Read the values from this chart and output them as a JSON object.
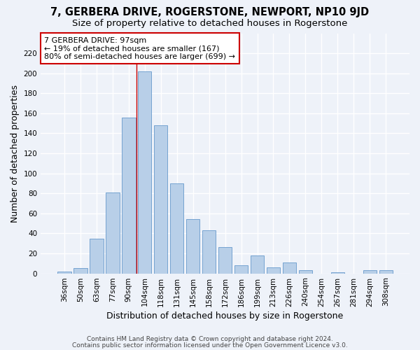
{
  "title": "7, GERBERA DRIVE, ROGERSTONE, NEWPORT, NP10 9JD",
  "subtitle": "Size of property relative to detached houses in Rogerstone",
  "xlabel": "Distribution of detached houses by size in Rogerstone",
  "ylabel": "Number of detached properties",
  "categories": [
    "36sqm",
    "50sqm",
    "63sqm",
    "77sqm",
    "90sqm",
    "104sqm",
    "118sqm",
    "131sqm",
    "145sqm",
    "158sqm",
    "172sqm",
    "186sqm",
    "199sqm",
    "213sqm",
    "226sqm",
    "240sqm",
    "254sqm",
    "267sqm",
    "281sqm",
    "294sqm",
    "308sqm"
  ],
  "values": [
    2,
    5,
    35,
    81,
    156,
    202,
    148,
    90,
    54,
    43,
    26,
    8,
    18,
    6,
    11,
    3,
    0,
    1,
    0,
    3,
    3
  ],
  "bar_color": "#b8cfe8",
  "bar_edge_color": "#6699cc",
  "annotation_text": "7 GERBERA DRIVE: 97sqm\n← 19% of detached houses are smaller (167)\n80% of semi-detached houses are larger (699) →",
  "annotation_box_color": "#ffffff",
  "annotation_box_edge": "#cc0000",
  "vline_x": 4.5,
  "vline_color": "#cc0000",
  "ylim": [
    0,
    240
  ],
  "yticks": [
    0,
    20,
    40,
    60,
    80,
    100,
    120,
    140,
    160,
    180,
    200,
    220
  ],
  "footer1": "Contains HM Land Registry data © Crown copyright and database right 2024.",
  "footer2": "Contains public sector information licensed under the Open Government Licence v3.0.",
  "bg_color": "#eef2f9",
  "grid_color": "#ffffff",
  "title_fontsize": 10.5,
  "subtitle_fontsize": 9.5,
  "tick_fontsize": 7.5,
  "ylabel_fontsize": 9,
  "xlabel_fontsize": 9,
  "ann_fontsize": 8
}
